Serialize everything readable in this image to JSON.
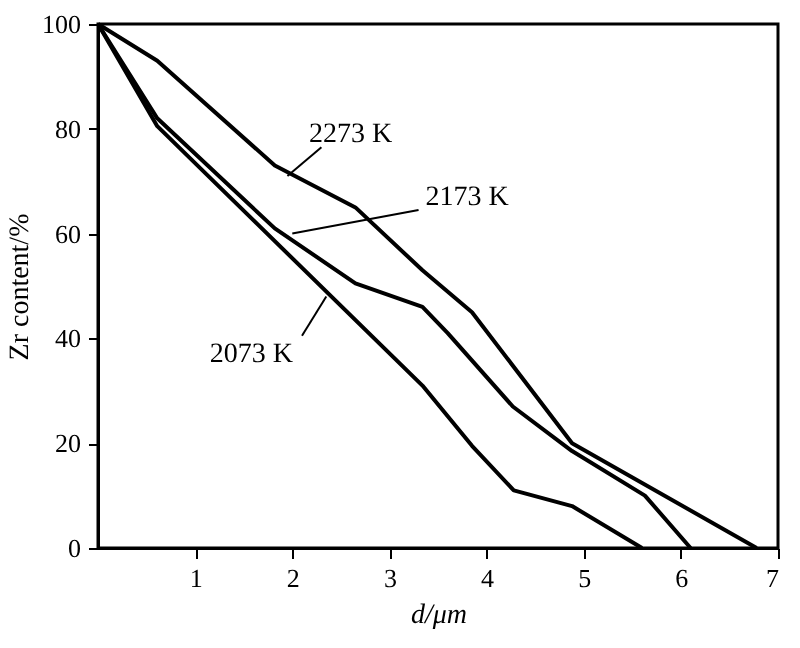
{
  "chart_data": {
    "type": "line",
    "xlabel": "d/μm",
    "ylabel": "Zr content/%",
    "xlim": [
      0,
      7
    ],
    "xticks": [
      1,
      2,
      3,
      4,
      5,
      6,
      7
    ],
    "ylim": [
      0,
      100
    ],
    "yticks": [
      0,
      20,
      40,
      60,
      80,
      100
    ],
    "grid": false,
    "marker": "none",
    "line_style": "solid",
    "series": [
      {
        "color": "#000000",
        "x": [
          0,
          0.61,
          1.82,
          2.65,
          3.34,
          3.85,
          4.88,
          6.78
        ],
        "values": [
          100,
          93,
          73,
          65,
          53,
          45,
          20,
          0
        ]
      },
      {
        "color": "#000000",
        "x": [
          0,
          0.61,
          1.82,
          2.65,
          3.34,
          3.6,
          4.27,
          4.88,
          5.63,
          6.1
        ],
        "values": [
          100,
          82,
          61,
          50.5,
          46,
          41,
          27,
          18.5,
          10,
          0
        ]
      },
      {
        "color": "#000000",
        "x": [
          0,
          0.61,
          3.34,
          3.85,
          4.28,
          4.88,
          5.6
        ],
        "values": [
          100,
          80.5,
          31,
          19.5,
          11,
          8,
          0
        ]
      }
    ],
    "annotations": [
      {
        "text": "2273 K",
        "x": 1.95,
        "y": 71
      },
      {
        "text": "2173 K",
        "x": 2.0,
        "y": 60
      },
      {
        "text": "2073 K",
        "x": 2.35,
        "y": 48
      }
    ]
  }
}
